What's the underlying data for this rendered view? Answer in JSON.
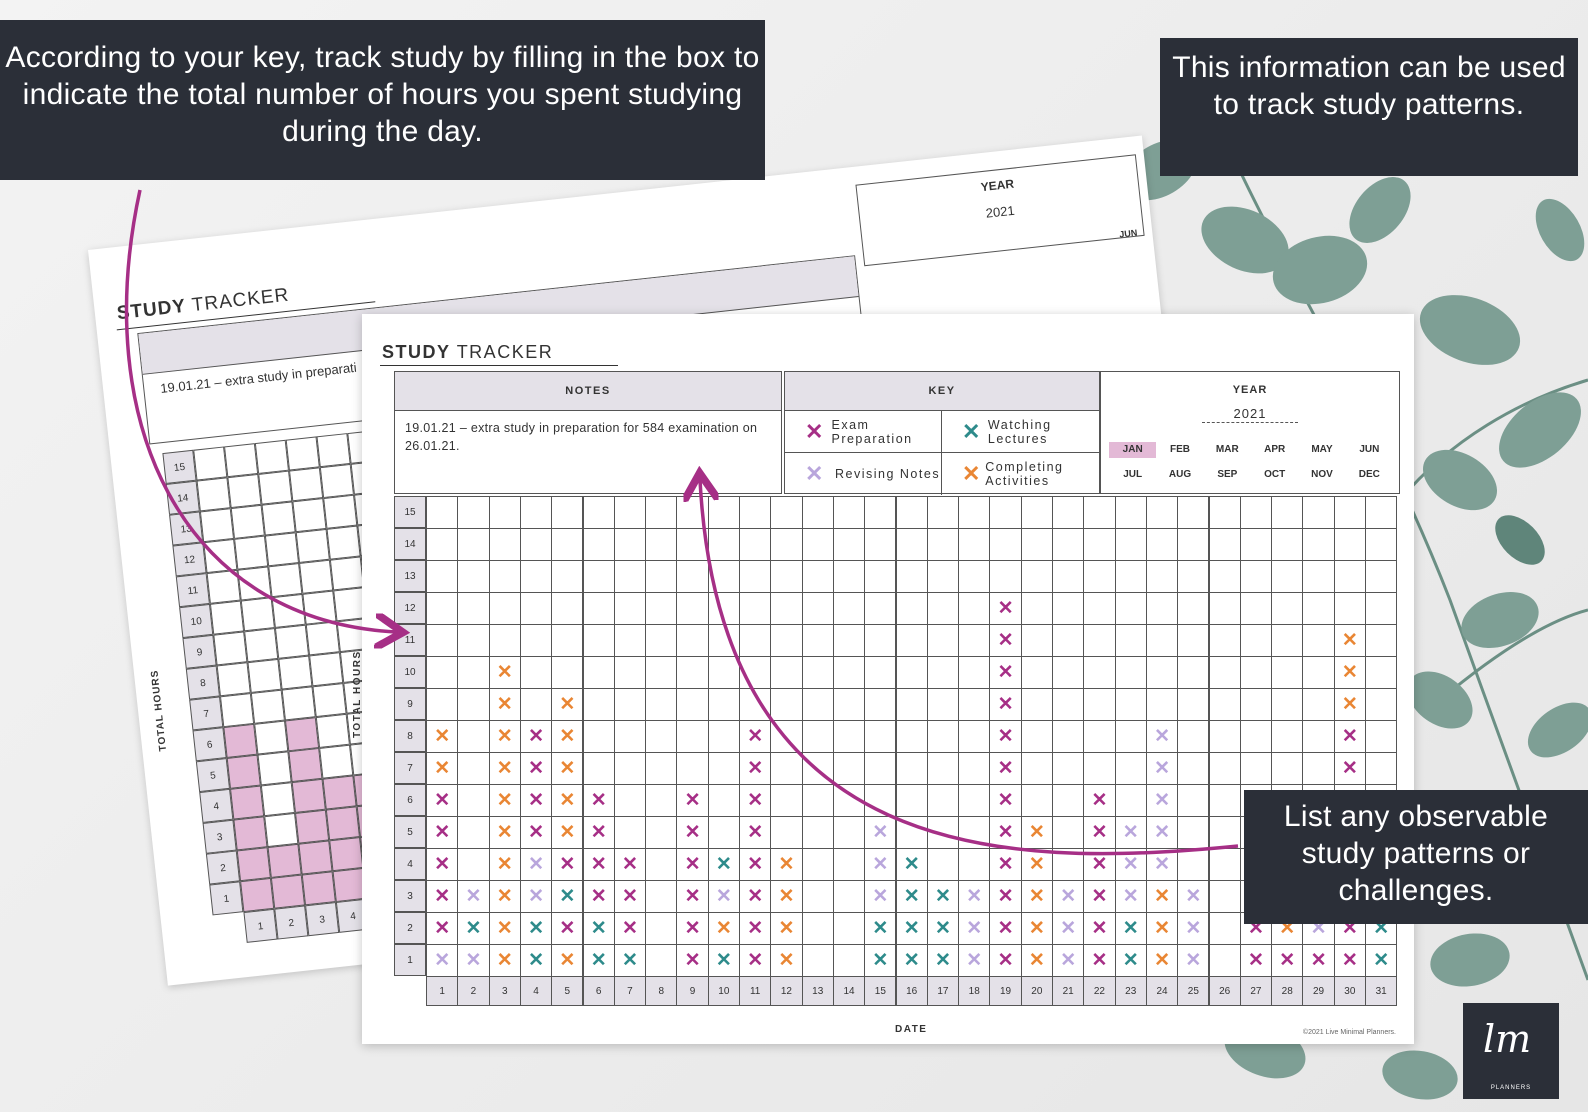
{
  "callouts": {
    "top_left": "According to your key, track study by filling in the box to indicate the total number of hours you spent studying during the day.",
    "top_right": "This information can be used to track study patterns.",
    "bottom_right": "List any observable study patterns or challenges."
  },
  "tracker": {
    "title_bold": "STUDY",
    "title_rest": " TRACKER",
    "notes_header": "NOTES",
    "notes_text": "19.01.21 – extra study in preparation for 584 examination on 26.01.21.",
    "key_header": "KEY",
    "key": [
      {
        "label": "Exam Preparation",
        "color": "#a62f86"
      },
      {
        "label": "Watching Lectures",
        "color": "#2e8b8b"
      },
      {
        "label": "Revising Notes",
        "color": "#b9a6dc"
      },
      {
        "label": "Completing Activities",
        "color": "#e98634"
      }
    ],
    "year_header": "YEAR",
    "year": "2021",
    "months": [
      "JAN",
      "FEB",
      "MAR",
      "APR",
      "MAY",
      "JUN",
      "JUL",
      "AUG",
      "SEP",
      "OCT",
      "NOV",
      "DEC"
    ],
    "selected_month": "JAN",
    "y_axis_title": "TOTAL HOURS",
    "x_axis_title": "DATE",
    "copyright": "©2021 Live Minimal Planners.",
    "hours": [
      15,
      14,
      13,
      12,
      11,
      10,
      9,
      8,
      7,
      6,
      5,
      4,
      3,
      2,
      1
    ],
    "dates": [
      1,
      2,
      3,
      4,
      5,
      6,
      7,
      8,
      9,
      10,
      11,
      12,
      13,
      14,
      15,
      16,
      17,
      18,
      19,
      20,
      21,
      22,
      23,
      24,
      25,
      26,
      27,
      28,
      29,
      30,
      31
    ]
  },
  "back_sheet": {
    "title_bold": "STUDY",
    "title_rest": " TRACKER",
    "notes_text": "19.01.21 – extra study in preparati",
    "year_header": "YEAR",
    "year": "2021",
    "month_peek": "JUN",
    "y_axis_title": "TOTAL HOURS",
    "hours": [
      15,
      14,
      13,
      12,
      11,
      10,
      9,
      8,
      7,
      6,
      5,
      4,
      3,
      2,
      1
    ],
    "dates": [
      1,
      2,
      3,
      4,
      5
    ]
  },
  "chart_data": {
    "type": "table",
    "title": "STUDY TRACKER",
    "xlabel": "DATE",
    "ylabel": "TOTAL HOURS",
    "legend": {
      "E": "Exam Preparation",
      "W": "Watching Lectures",
      "R": "Revising Notes",
      "C": "Completing Activities"
    },
    "days": [
      {
        "date": 1,
        "hours_bottom_to_top": [
          "R",
          "E",
          "E",
          "E",
          "E",
          "E",
          "C",
          "C"
        ]
      },
      {
        "date": 2,
        "hours_bottom_to_top": [
          "R",
          "W",
          "R"
        ]
      },
      {
        "date": 3,
        "hours_bottom_to_top": [
          "C",
          "C",
          "C",
          "C",
          "C",
          "C",
          "C",
          "C",
          "C",
          "C"
        ]
      },
      {
        "date": 4,
        "hours_bottom_to_top": [
          "W",
          "W",
          "R",
          "R",
          "E",
          "E",
          "E",
          "E"
        ]
      },
      {
        "date": 5,
        "hours_bottom_to_top": [
          "C",
          "E",
          "W",
          "E",
          "C",
          "C",
          "C",
          "C",
          "C"
        ]
      },
      {
        "date": 6,
        "hours_bottom_to_top": [
          "W",
          "W",
          "E",
          "E",
          "E",
          "E"
        ]
      },
      {
        "date": 7,
        "hours_bottom_to_top": [
          "W",
          "E",
          "E",
          "E"
        ]
      },
      {
        "date": 8,
        "hours_bottom_to_top": []
      },
      {
        "date": 9,
        "hours_bottom_to_top": [
          "E",
          "E",
          "E",
          "E",
          "E",
          "E"
        ]
      },
      {
        "date": 10,
        "hours_bottom_to_top": [
          "W",
          "C",
          "R",
          "W"
        ]
      },
      {
        "date": 11,
        "hours_bottom_to_top": [
          "E",
          "E",
          "E",
          "E",
          "E",
          "E",
          "E",
          "E"
        ]
      },
      {
        "date": 12,
        "hours_bottom_to_top": [
          "C",
          "C",
          "C",
          "C"
        ]
      },
      {
        "date": 13,
        "hours_bottom_to_top": []
      },
      {
        "date": 14,
        "hours_bottom_to_top": []
      },
      {
        "date": 15,
        "hours_bottom_to_top": [
          "W",
          "W",
          "R",
          "R",
          "R"
        ]
      },
      {
        "date": 16,
        "hours_bottom_to_top": [
          "W",
          "W",
          "W",
          "W"
        ]
      },
      {
        "date": 17,
        "hours_bottom_to_top": [
          "W",
          "W",
          "W"
        ]
      },
      {
        "date": 18,
        "hours_bottom_to_top": [
          "R",
          "R",
          "R"
        ]
      },
      {
        "date": 19,
        "hours_bottom_to_top": [
          "E",
          "E",
          "E",
          "E",
          "E",
          "E",
          "E",
          "E",
          "E",
          "E",
          "E",
          "E"
        ]
      },
      {
        "date": 20,
        "hours_bottom_to_top": [
          "C",
          "C",
          "C",
          "C",
          "C"
        ]
      },
      {
        "date": 21,
        "hours_bottom_to_top": [
          "R",
          "R",
          "R"
        ]
      },
      {
        "date": 22,
        "hours_bottom_to_top": [
          "E",
          "E",
          "E",
          "E",
          "E",
          "E"
        ]
      },
      {
        "date": 23,
        "hours_bottom_to_top": [
          "W",
          "W",
          "R",
          "R",
          "R"
        ]
      },
      {
        "date": 24,
        "hours_bottom_to_top": [
          "C",
          "C",
          "C",
          "R",
          "R",
          "R",
          "R",
          "R"
        ]
      },
      {
        "date": 25,
        "hours_bottom_to_top": [
          "R",
          "R",
          "R"
        ]
      },
      {
        "date": 26,
        "hours_bottom_to_top": []
      },
      {
        "date": 27,
        "hours_bottom_to_top": [
          "E",
          "E"
        ]
      },
      {
        "date": 28,
        "hours_bottom_to_top": [
          "E",
          "C"
        ]
      },
      {
        "date": 29,
        "hours_bottom_to_top": [
          "E",
          "R"
        ]
      },
      {
        "date": 30,
        "hours_bottom_to_top": [
          "E",
          "E",
          "E",
          "E",
          "E",
          "E",
          "E",
          "E",
          "C",
          "C",
          "C"
        ]
      },
      {
        "date": 31,
        "hours_bottom_to_top": [
          "W",
          "W"
        ]
      }
    ]
  },
  "logo": {
    "mark": "lm",
    "text": "PLANNERS"
  }
}
